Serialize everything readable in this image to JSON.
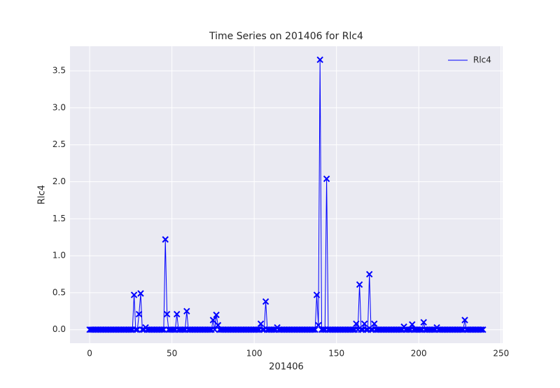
{
  "chart_data": {
    "type": "line",
    "title": "Time Series on 201406 for Rlc4",
    "x_label": "201406",
    "y_label": "Rlc4",
    "x": [
      0,
      1,
      2,
      3,
      4,
      5,
      6,
      7,
      8,
      9,
      10,
      11,
      12,
      13,
      14,
      15,
      16,
      17,
      18,
      19,
      20,
      21,
      22,
      23,
      24,
      25,
      26,
      27,
      28,
      29,
      30,
      31,
      32,
      33,
      34,
      35,
      36,
      37,
      38,
      39,
      40,
      41,
      42,
      43,
      44,
      45,
      46,
      47,
      48,
      49,
      50,
      51,
      52,
      53,
      54,
      55,
      56,
      57,
      58,
      59,
      60,
      61,
      62,
      63,
      64,
      65,
      66,
      67,
      68,
      69,
      70,
      71,
      72,
      73,
      74,
      75,
      76,
      77,
      78,
      79,
      80,
      81,
      82,
      83,
      84,
      85,
      86,
      87,
      88,
      89,
      90,
      91,
      92,
      93,
      94,
      95,
      96,
      97,
      98,
      99,
      100,
      101,
      102,
      103,
      104,
      105,
      106,
      107,
      108,
      109,
      110,
      111,
      112,
      113,
      114,
      115,
      116,
      117,
      118,
      119,
      120,
      121,
      122,
      123,
      124,
      125,
      126,
      127,
      128,
      129,
      130,
      131,
      132,
      133,
      134,
      135,
      136,
      137,
      138,
      139,
      140,
      141,
      142,
      143,
      144,
      145,
      146,
      147,
      148,
      149,
      150,
      151,
      152,
      153,
      154,
      155,
      156,
      157,
      158,
      159,
      160,
      161,
      162,
      163,
      164,
      165,
      166,
      167,
      168,
      169,
      170,
      171,
      172,
      173,
      174,
      175,
      176,
      177,
      178,
      179,
      180,
      181,
      182,
      183,
      184,
      185,
      186,
      187,
      188,
      189,
      190,
      191,
      192,
      193,
      194,
      195,
      196,
      197,
      198,
      199,
      200,
      201,
      202,
      203,
      204,
      205,
      206,
      207,
      208,
      209,
      210,
      211,
      212,
      213,
      214,
      215,
      216,
      217,
      218,
      219,
      220,
      221,
      222,
      223,
      224,
      225,
      226,
      227,
      228,
      229,
      230,
      231,
      232,
      233,
      234,
      235,
      236,
      237,
      238,
      239
    ],
    "series": [
      {
        "name": "Rlc4",
        "color": "#0000ff",
        "values": [
          0,
          0,
          0,
          0,
          0,
          0,
          0,
          0,
          0,
          0,
          0,
          0,
          0,
          0,
          0,
          0,
          0,
          0,
          0,
          0,
          0,
          0,
          0,
          0,
          0,
          0,
          0,
          0.47,
          0,
          0,
          0.21,
          0.49,
          0,
          0,
          0.03,
          0,
          0,
          0,
          0,
          0,
          0,
          0,
          0,
          0,
          0,
          0,
          1.22,
          0.21,
          0,
          0,
          0,
          0,
          0,
          0.21,
          0,
          0,
          0,
          0,
          0,
          0.25,
          0,
          0,
          0,
          0,
          0,
          0,
          0,
          0,
          0,
          0,
          0,
          0,
          0,
          0,
          0,
          0.13,
          0,
          0.2,
          0.06,
          0,
          0,
          0,
          0,
          0,
          0,
          0,
          0,
          0,
          0,
          0,
          0,
          0,
          0,
          0,
          0,
          0,
          0,
          0,
          0,
          0,
          0,
          0,
          0,
          0,
          0.08,
          0,
          0,
          0.38,
          0,
          0,
          0,
          0,
          0,
          0,
          0.03,
          0,
          0,
          0,
          0,
          0,
          0,
          0,
          0,
          0,
          0,
          0,
          0,
          0,
          0,
          0,
          0,
          0,
          0,
          0,
          0,
          0,
          0,
          0,
          0.47,
          0.06,
          3.65,
          0,
          0,
          0,
          2.04,
          0,
          0,
          0,
          0,
          0,
          0,
          0,
          0,
          0,
          0,
          0,
          0,
          0,
          0,
          0,
          0,
          0,
          0.08,
          0,
          0.61,
          0,
          0,
          0.08,
          0,
          0,
          0.75,
          0,
          0,
          0.08,
          0,
          0,
          0,
          0,
          0,
          0,
          0,
          0,
          0,
          0,
          0,
          0,
          0,
          0,
          0,
          0,
          0,
          0.04,
          0,
          0,
          0,
          0,
          0.07,
          0,
          0,
          0,
          0,
          0,
          0,
          0.1,
          0,
          0,
          0,
          0,
          0,
          0,
          0,
          0.03,
          0,
          0,
          0,
          0,
          0,
          0,
          0,
          0,
          0,
          0,
          0,
          0,
          0,
          0,
          0,
          0,
          0.13,
          0,
          0,
          0,
          0,
          0,
          0,
          0,
          0,
          0,
          0,
          0
        ]
      }
    ],
    "xlim": [
      -11.95,
      250.95
    ],
    "ylim": [
      -0.1825,
      3.8325
    ],
    "xticks": [
      0,
      50,
      100,
      150,
      200,
      250
    ],
    "yticks": [
      {
        "value": 0,
        "label": "0.0"
      },
      0.5,
      {
        "value": 1,
        "label": "1.0"
      },
      1.5,
      {
        "value": 2,
        "label": "2.0"
      },
      2.5,
      {
        "value": 3,
        "label": "3.0"
      },
      3.5
    ],
    "grid": true,
    "legend": "upper right"
  }
}
